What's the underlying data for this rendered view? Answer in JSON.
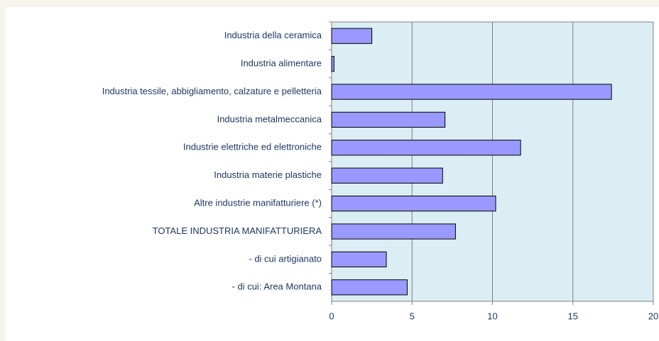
{
  "chart_data": {
    "type": "barh",
    "categories": [
      "Industria della ceramica",
      "Industria alimentare",
      "Industria tessile, abbigliamento, calzature e pelletteria",
      "Industria metalmeccanica",
      "Industrie elettriche ed elettroniche",
      "Industria materie plastiche",
      "Altre industrie manifatturiere (*)",
      "TOTALE INDUSTRIA MANIFATTURIERA",
      "- di cui artigianato",
      "- di cui: Area Montana"
    ],
    "values": [
      2.5,
      0.15,
      17.4,
      7.05,
      11.75,
      6.9,
      10.2,
      7.7,
      3.4,
      4.7
    ],
    "color": "#9999ff",
    "xlim": [
      0,
      20
    ],
    "xticks": [
      0,
      5,
      10,
      15,
      20
    ],
    "grid": true
  }
}
